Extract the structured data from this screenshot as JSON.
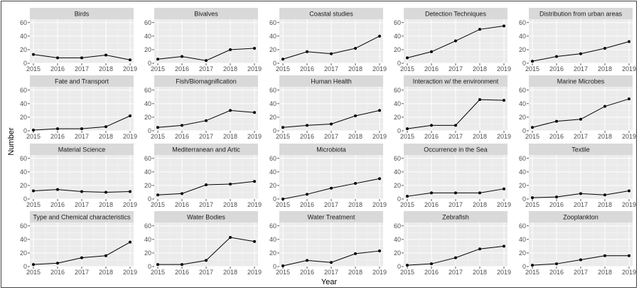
{
  "chart_data": {
    "type": "line",
    "xlabel": "Year",
    "ylabel": "Number",
    "x": [
      2015,
      2016,
      2017,
      2018,
      2019
    ],
    "ylim": [
      0,
      65
    ],
    "yticks": [
      0,
      20,
      40,
      60
    ],
    "grid": true,
    "colors": {
      "panel": "#ebebeb",
      "strip": "#d9d9d9",
      "grid": "#ffffff",
      "line": "#000000"
    },
    "panels": [
      {
        "title": "Birds",
        "values": [
          13,
          8,
          8,
          12,
          5
        ]
      },
      {
        "title": "Bivalves",
        "values": [
          6,
          10,
          4,
          20,
          22
        ]
      },
      {
        "title": "Coastal studies",
        "values": [
          6,
          17,
          14,
          22,
          40
        ]
      },
      {
        "title": "Detection Techniques",
        "values": [
          8,
          17,
          33,
          50,
          55
        ]
      },
      {
        "title": "Distribution from urban areas",
        "values": [
          3,
          10,
          14,
          22,
          32
        ]
      },
      {
        "title": "Fate and Transport",
        "values": [
          1,
          3,
          3,
          6,
          22
        ]
      },
      {
        "title": "Fish/Biomagnification",
        "values": [
          5,
          8,
          15,
          30,
          27
        ]
      },
      {
        "title": "Human Health",
        "values": [
          5,
          8,
          10,
          22,
          30
        ]
      },
      {
        "title": "Interaction w/ the environment",
        "values": [
          3,
          8,
          8,
          46,
          45
        ]
      },
      {
        "title": "Marine Microbes",
        "values": [
          5,
          14,
          17,
          36,
          47
        ]
      },
      {
        "title": "Material Science",
        "values": [
          12,
          14,
          11,
          10,
          11
        ]
      },
      {
        "title": "Mediterranean and Artic",
        "values": [
          6,
          8,
          21,
          22,
          26
        ]
      },
      {
        "title": "Microbiota",
        "values": [
          0,
          7,
          16,
          23,
          30
        ]
      },
      {
        "title": "Occurrence in the Sea",
        "values": [
          4,
          9,
          9,
          9,
          15
        ]
      },
      {
        "title": "Textile",
        "values": [
          2,
          3,
          8,
          6,
          12
        ]
      },
      {
        "title": "Type and Chemical characteristics",
        "values": [
          3,
          5,
          13,
          16,
          36
        ]
      },
      {
        "title": "Water Bodies",
        "values": [
          3,
          3,
          9,
          43,
          37
        ]
      },
      {
        "title": "Water Treatment",
        "values": [
          1,
          9,
          6,
          19,
          23
        ]
      },
      {
        "title": "Zebrafish",
        "values": [
          2,
          4,
          13,
          26,
          30
        ]
      },
      {
        "title": "Zooplankton",
        "values": [
          2,
          4,
          10,
          16,
          16
        ]
      }
    ]
  }
}
